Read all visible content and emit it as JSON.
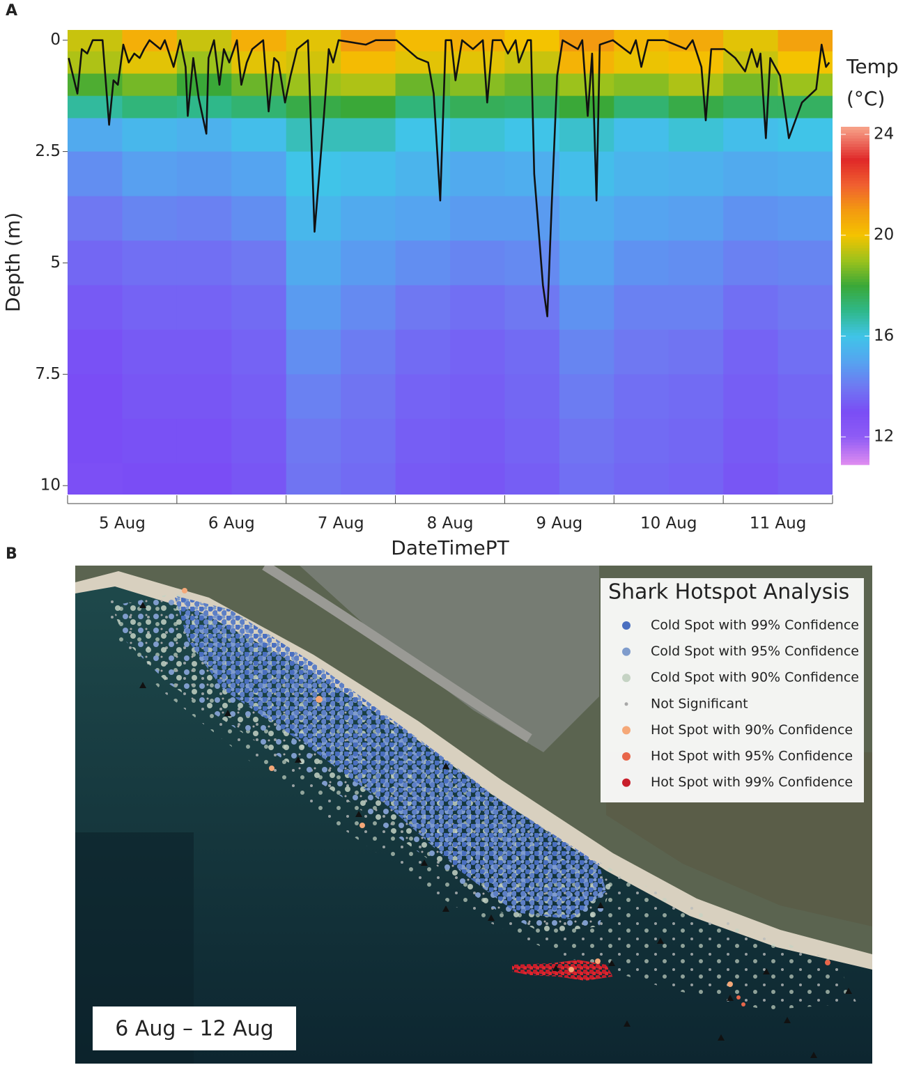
{
  "chart_data": {
    "type": "heatmap",
    "panel_label": "A",
    "xlabel": "DateTimePT",
    "ylabel": "Depth (m)",
    "categories": [
      "5 Aug",
      "6 Aug",
      "7 Aug",
      "8 Aug",
      "9 Aug",
      "10 Aug",
      "11 Aug"
    ],
    "xlim": [
      5,
      12
    ],
    "xticks": [
      5,
      6,
      7,
      8,
      9,
      10,
      11,
      12
    ],
    "ylim": [
      -0.23,
      10.2
    ],
    "y_reversed": true,
    "yticks": [
      0,
      2.5,
      5,
      7.5,
      10
    ],
    "x": [
      5.25,
      5.75,
      6.25,
      6.75,
      7.25,
      7.75,
      8.25,
      8.75,
      9.25,
      9.75,
      10.25,
      10.75,
      11.25,
      11.75
    ],
    "y": [
      0,
      0.5,
      1,
      1.5,
      2,
      3,
      4,
      5,
      6,
      7,
      8,
      9,
      10
    ],
    "z": [
      [
        19.5,
        20.5,
        19.5,
        20.5,
        19.8,
        21,
        20.2,
        20.5,
        20,
        21,
        20.3,
        20.6,
        19.8,
        20.8
      ],
      [
        19.2,
        19.8,
        19,
        19.8,
        19.6,
        20.2,
        19.8,
        19.8,
        19.5,
        20.4,
        19.9,
        20.1,
        19.5,
        20
      ],
      [
        18.2,
        18.6,
        18,
        18.5,
        19,
        19.2,
        18.5,
        18.8,
        18.5,
        19,
        18.8,
        19.2,
        18.6,
        19
      ],
      [
        16.8,
        17.2,
        17,
        17.3,
        17.8,
        18,
        17.2,
        17.6,
        17.5,
        18,
        17.3,
        17.8,
        17.5,
        17.5
      ],
      [
        15.2,
        15.6,
        15.4,
        15.8,
        16.5,
        16.5,
        16,
        16.2,
        16,
        16.3,
        15.8,
        16.2,
        15.8,
        16
      ],
      [
        14.5,
        14.9,
        14.8,
        15,
        16,
        15.8,
        15.5,
        15.2,
        15.3,
        15.8,
        15.5,
        15.4,
        15.2,
        15.3
      ],
      [
        14,
        14.3,
        14.2,
        14.5,
        15.6,
        15.2,
        15,
        14.8,
        14.8,
        15.3,
        15,
        14.9,
        14.6,
        14.7
      ],
      [
        13.6,
        13.8,
        13.8,
        14,
        15.2,
        14.8,
        14.5,
        14.3,
        14.4,
        15,
        14.6,
        14.5,
        14.2,
        14.3
      ],
      [
        13.3,
        13.5,
        13.5,
        13.7,
        14.8,
        14.4,
        14,
        13.8,
        14,
        14.6,
        14.2,
        14.2,
        13.8,
        14
      ],
      [
        13.1,
        13.3,
        13.3,
        13.5,
        14.5,
        14.1,
        13.7,
        13.5,
        13.7,
        14.3,
        14,
        13.9,
        13.5,
        13.8
      ],
      [
        13,
        13.2,
        13.2,
        13.4,
        14.2,
        13.9,
        13.5,
        13.4,
        13.6,
        14.1,
        13.8,
        13.7,
        13.4,
        13.6
      ],
      [
        13,
        13.1,
        13.1,
        13.3,
        14,
        13.8,
        13.4,
        13.3,
        13.5,
        13.9,
        13.7,
        13.6,
        13.3,
        13.5
      ],
      [
        12.9,
        13,
        13,
        13.2,
        13.9,
        13.7,
        13.3,
        13.2,
        13.4,
        13.8,
        13.6,
        13.5,
        13.2,
        13.4
      ]
    ],
    "colorbar": {
      "title": [
        "Temp",
        "(°C)"
      ],
      "lim": [
        10.9,
        24.3
      ],
      "ticks": [
        12,
        16,
        20,
        24
      ],
      "colorscale": [
        [
          10.9,
          "#e08cf0"
        ],
        [
          12,
          "#8f5cf5"
        ],
        [
          13,
          "#7a4df5"
        ],
        [
          14,
          "#6f78f2"
        ],
        [
          15,
          "#55a4f0"
        ],
        [
          16,
          "#40c4e8"
        ],
        [
          17,
          "#2fb88a"
        ],
        [
          18,
          "#3aa838"
        ],
        [
          19,
          "#9cc21c"
        ],
        [
          20,
          "#f4c300"
        ],
        [
          21,
          "#f39a10"
        ],
        [
          22,
          "#f06030"
        ],
        [
          23,
          "#e02828"
        ],
        [
          24.3,
          "#f7a48a"
        ]
      ]
    },
    "line": {
      "color": "#111111",
      "x": [
        5.01,
        5.09,
        5.13,
        5.18,
        5.23,
        5.32,
        5.38,
        5.42,
        5.46,
        5.51,
        5.56,
        5.61,
        5.66,
        5.7,
        5.75,
        5.85,
        5.89,
        5.97,
        6.03,
        6.08,
        6.1,
        6.15,
        6.2,
        6.27,
        6.29,
        6.34,
        6.39,
        6.43,
        6.48,
        6.55,
        6.59,
        6.64,
        6.69,
        6.79,
        6.84,
        6.89,
        6.93,
        6.99,
        7.04,
        7.1,
        7.2,
        7.26,
        7.34,
        7.39,
        7.43,
        7.48,
        7.73,
        7.82,
        8.01,
        8.2,
        8.3,
        8.35,
        8.41,
        8.46,
        8.51,
        8.55,
        8.61,
        8.71,
        8.8,
        8.84,
        8.89,
        8.97,
        9.03,
        9.1,
        9.13,
        9.21,
        9.24,
        9.27,
        9.35,
        9.39,
        9.43,
        9.48,
        9.53,
        9.67,
        9.71,
        9.76,
        9.8,
        9.84,
        9.87,
        9.99,
        10.15,
        10.2,
        10.25,
        10.31,
        10.46,
        10.66,
        10.72,
        10.8,
        10.84,
        10.89,
        11.01,
        11.11,
        11.2,
        11.26,
        11.31,
        11.34,
        11.39,
        11.43,
        11.52,
        11.6,
        11.72,
        11.85,
        11.9,
        11.94,
        11.97
      ],
      "values": [
        0.4,
        1.2,
        0.2,
        0.3,
        0,
        0,
        1.9,
        0.9,
        1.0,
        0.1,
        0.5,
        0.3,
        0.4,
        0.2,
        0,
        0.2,
        0,
        0.6,
        0,
        0.6,
        1.7,
        0.4,
        1.3,
        2.1,
        0.4,
        0,
        1.0,
        0.2,
        0.5,
        0,
        1.0,
        0.5,
        0.2,
        0,
        1.6,
        0.4,
        0.5,
        1.4,
        0.8,
        0.2,
        0,
        4.3,
        1.9,
        0.2,
        0.5,
        0,
        0.1,
        0,
        0,
        0.4,
        0.5,
        1.2,
        3.6,
        0,
        0,
        0.9,
        0,
        0.2,
        0,
        1.4,
        0,
        0,
        0.3,
        0,
        0.5,
        0,
        0,
        3.0,
        5.5,
        6.2,
        3.7,
        0.8,
        0,
        0.2,
        0,
        1.7,
        0.3,
        3.6,
        0.1,
        0,
        0.3,
        0,
        0.6,
        0,
        0,
        0.2,
        0,
        0.6,
        1.8,
        0.2,
        0.2,
        0.4,
        0.7,
        0.2,
        0.6,
        0.3,
        2.2,
        0.4,
        0.8,
        2.2,
        1.4,
        1.1,
        0.1,
        0.6,
        0.5
      ]
    }
  },
  "map": {
    "panel_label": "B",
    "date_label": "6 Aug – 12 Aug",
    "legend": {
      "title": "Shark Hotspot Analysis",
      "items": [
        {
          "name": "Cold Spot with 99% Confidence",
          "color": "#4a6fc0"
        },
        {
          "name": "Cold Spot with 95% Confidence",
          "color": "#7f9ccc"
        },
        {
          "name": "Cold Spot with 90% Confidence",
          "color": "#c5d3c4"
        },
        {
          "name": "Not Significant",
          "color": "#a8a8a8"
        },
        {
          "name": "Hot Spot with 90% Confidence",
          "color": "#f5a878"
        },
        {
          "name": "Hot Spot with 95% Confidence",
          "color": "#e8664a"
        },
        {
          "name": "Hot Spot with 99% Confidence",
          "color": "#c81e2b"
        }
      ]
    }
  }
}
